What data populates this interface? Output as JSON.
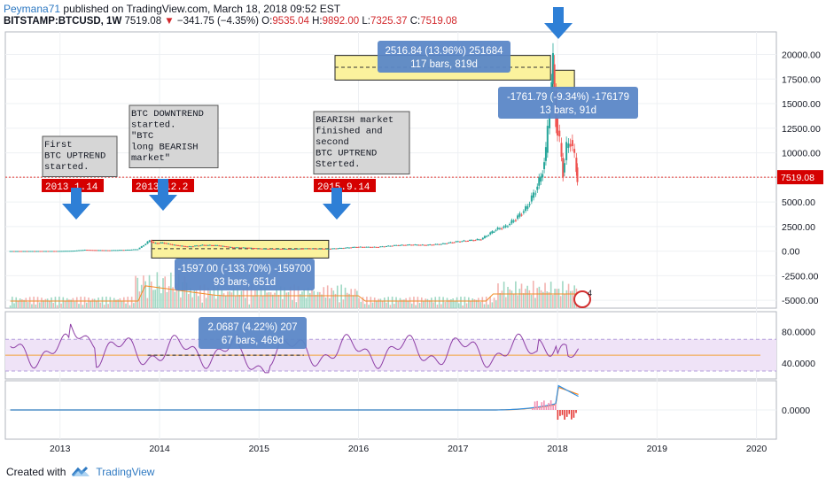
{
  "header": {
    "author": "Peymana71",
    "published_text": "published on TradingView.com, March 18, 2018 09:52 EST",
    "symbol": "BITSTAMP:BTCUSD, 1W",
    "last": "7519.08",
    "change": "−341.75 (−4.35%)",
    "open_label": "O:",
    "open": "9535.04",
    "high_label": "H:",
    "high": "9892.00",
    "low_label": "L:",
    "low": "7325.37",
    "close_label": "C:",
    "close": "7519.08"
  },
  "footer": {
    "created_with": "Created with",
    "brand": "TradingView"
  },
  "colors": {
    "up": "#26a69a",
    "down": "#ef5350",
    "label_red": "#d50000",
    "measure_blue": "#5b87c7",
    "yellow_box": "#fbf29d",
    "rsi_line": "#8e3fa6",
    "rsi_band": "#efe3f7",
    "macd_blue": "#2e8de0",
    "macd_orange": "#ff8a1f"
  },
  "icons": [
    "down-arrow-icon",
    "tradingview-logo-icon",
    "earnings-flag-icon"
  ],
  "chart_data": {
    "type": "candlestick",
    "price_scale": {
      "ylim": [
        -5800,
        22300
      ],
      "ticks": [
        "20000.00",
        "17500.00",
        "15000.00",
        "12500.00",
        "10000.00",
        "7500.00",
        "5000.00",
        "2500.00",
        "0.00",
        "-2500.00",
        "-5000.00"
      ],
      "last_price_label": "7519.08",
      "last_price": 7519.08
    },
    "x_ticks": [
      "2013",
      "2014",
      "2015",
      "2016",
      "2017",
      "2018",
      "2019",
      "2020"
    ],
    "x_range": [
      2012.45,
      2020.2
    ],
    "price_series": [
      [
        2012.5,
        7
      ],
      [
        2012.8,
        11
      ],
      [
        2013.0,
        13
      ],
      [
        2013.15,
        40
      ],
      [
        2013.27,
        140
      ],
      [
        2013.35,
        110
      ],
      [
        2013.5,
        90
      ],
      [
        2013.7,
        140
      ],
      [
        2013.8,
        200
      ],
      [
        2013.88,
        750
      ],
      [
        2013.92,
        1100
      ],
      [
        2013.96,
        800
      ],
      [
        2014.05,
        850
      ],
      [
        2014.15,
        650
      ],
      [
        2014.3,
        450
      ],
      [
        2014.45,
        620
      ],
      [
        2014.6,
        580
      ],
      [
        2014.75,
        380
      ],
      [
        2014.9,
        350
      ],
      [
        2015.05,
        250
      ],
      [
        2015.2,
        240
      ],
      [
        2015.35,
        230
      ],
      [
        2015.5,
        280
      ],
      [
        2015.7,
        240
      ],
      [
        2015.85,
        320
      ],
      [
        2016.0,
        430
      ],
      [
        2016.2,
        420
      ],
      [
        2016.4,
        600
      ],
      [
        2016.55,
        650
      ],
      [
        2016.7,
        620
      ],
      [
        2016.85,
        730
      ],
      [
        2017.0,
        960
      ],
      [
        2017.1,
        1050
      ],
      [
        2017.25,
        1200
      ],
      [
        2017.4,
        2200
      ],
      [
        2017.5,
        2500
      ],
      [
        2017.6,
        3300
      ],
      [
        2017.7,
        4300
      ],
      [
        2017.78,
        5800
      ],
      [
        2017.85,
        7500
      ],
      [
        2017.9,
        10000
      ],
      [
        2017.94,
        15000
      ],
      [
        2017.97,
        19000
      ],
      [
        2018.0,
        13500
      ],
      [
        2018.04,
        11000
      ],
      [
        2018.07,
        8000
      ],
      [
        2018.11,
        10500
      ],
      [
        2018.15,
        11300
      ],
      [
        2018.19,
        9500
      ],
      [
        2018.21,
        7519
      ]
    ],
    "rsi": {
      "levels": [
        "80.0000",
        "40.0000"
      ],
      "ylim": [
        20,
        105
      ],
      "band": [
        30,
        70
      ],
      "signal_level": 50
    },
    "macd": {
      "ticks": [
        "0.0000"
      ]
    },
    "annotations": [
      {
        "text_lines": [
          "First",
          "BTC UPTREND",
          "started."
        ],
        "date_label": "2013.1.14"
      },
      {
        "text_lines": [
          "BTC DOWNTREND",
          "started.",
          "\"BTC",
          "long BEARISH",
          "market\""
        ],
        "date_label": "2013.12.2"
      },
      {
        "text_lines": [
          "BEARISH market",
          "finished and",
          "second",
          "BTC UPTREND",
          "Sterted."
        ],
        "date_label": "2015.9.14"
      }
    ],
    "measurements": [
      {
        "line1": "2516.84 (13.96%) 251684",
        "line2": "117 bars, 819d"
      },
      {
        "line1": "-1761.79 (-9.34%) -176179",
        "line2": "13 bars, 91d"
      },
      {
        "line1": "-1597.00 (-133.70%) -159700",
        "line2": "93 bars, 651d"
      },
      {
        "line1": "2.0687 (4.22%) 207",
        "line2": "67 bars, 469d"
      }
    ],
    "earnings_badge": "4"
  }
}
